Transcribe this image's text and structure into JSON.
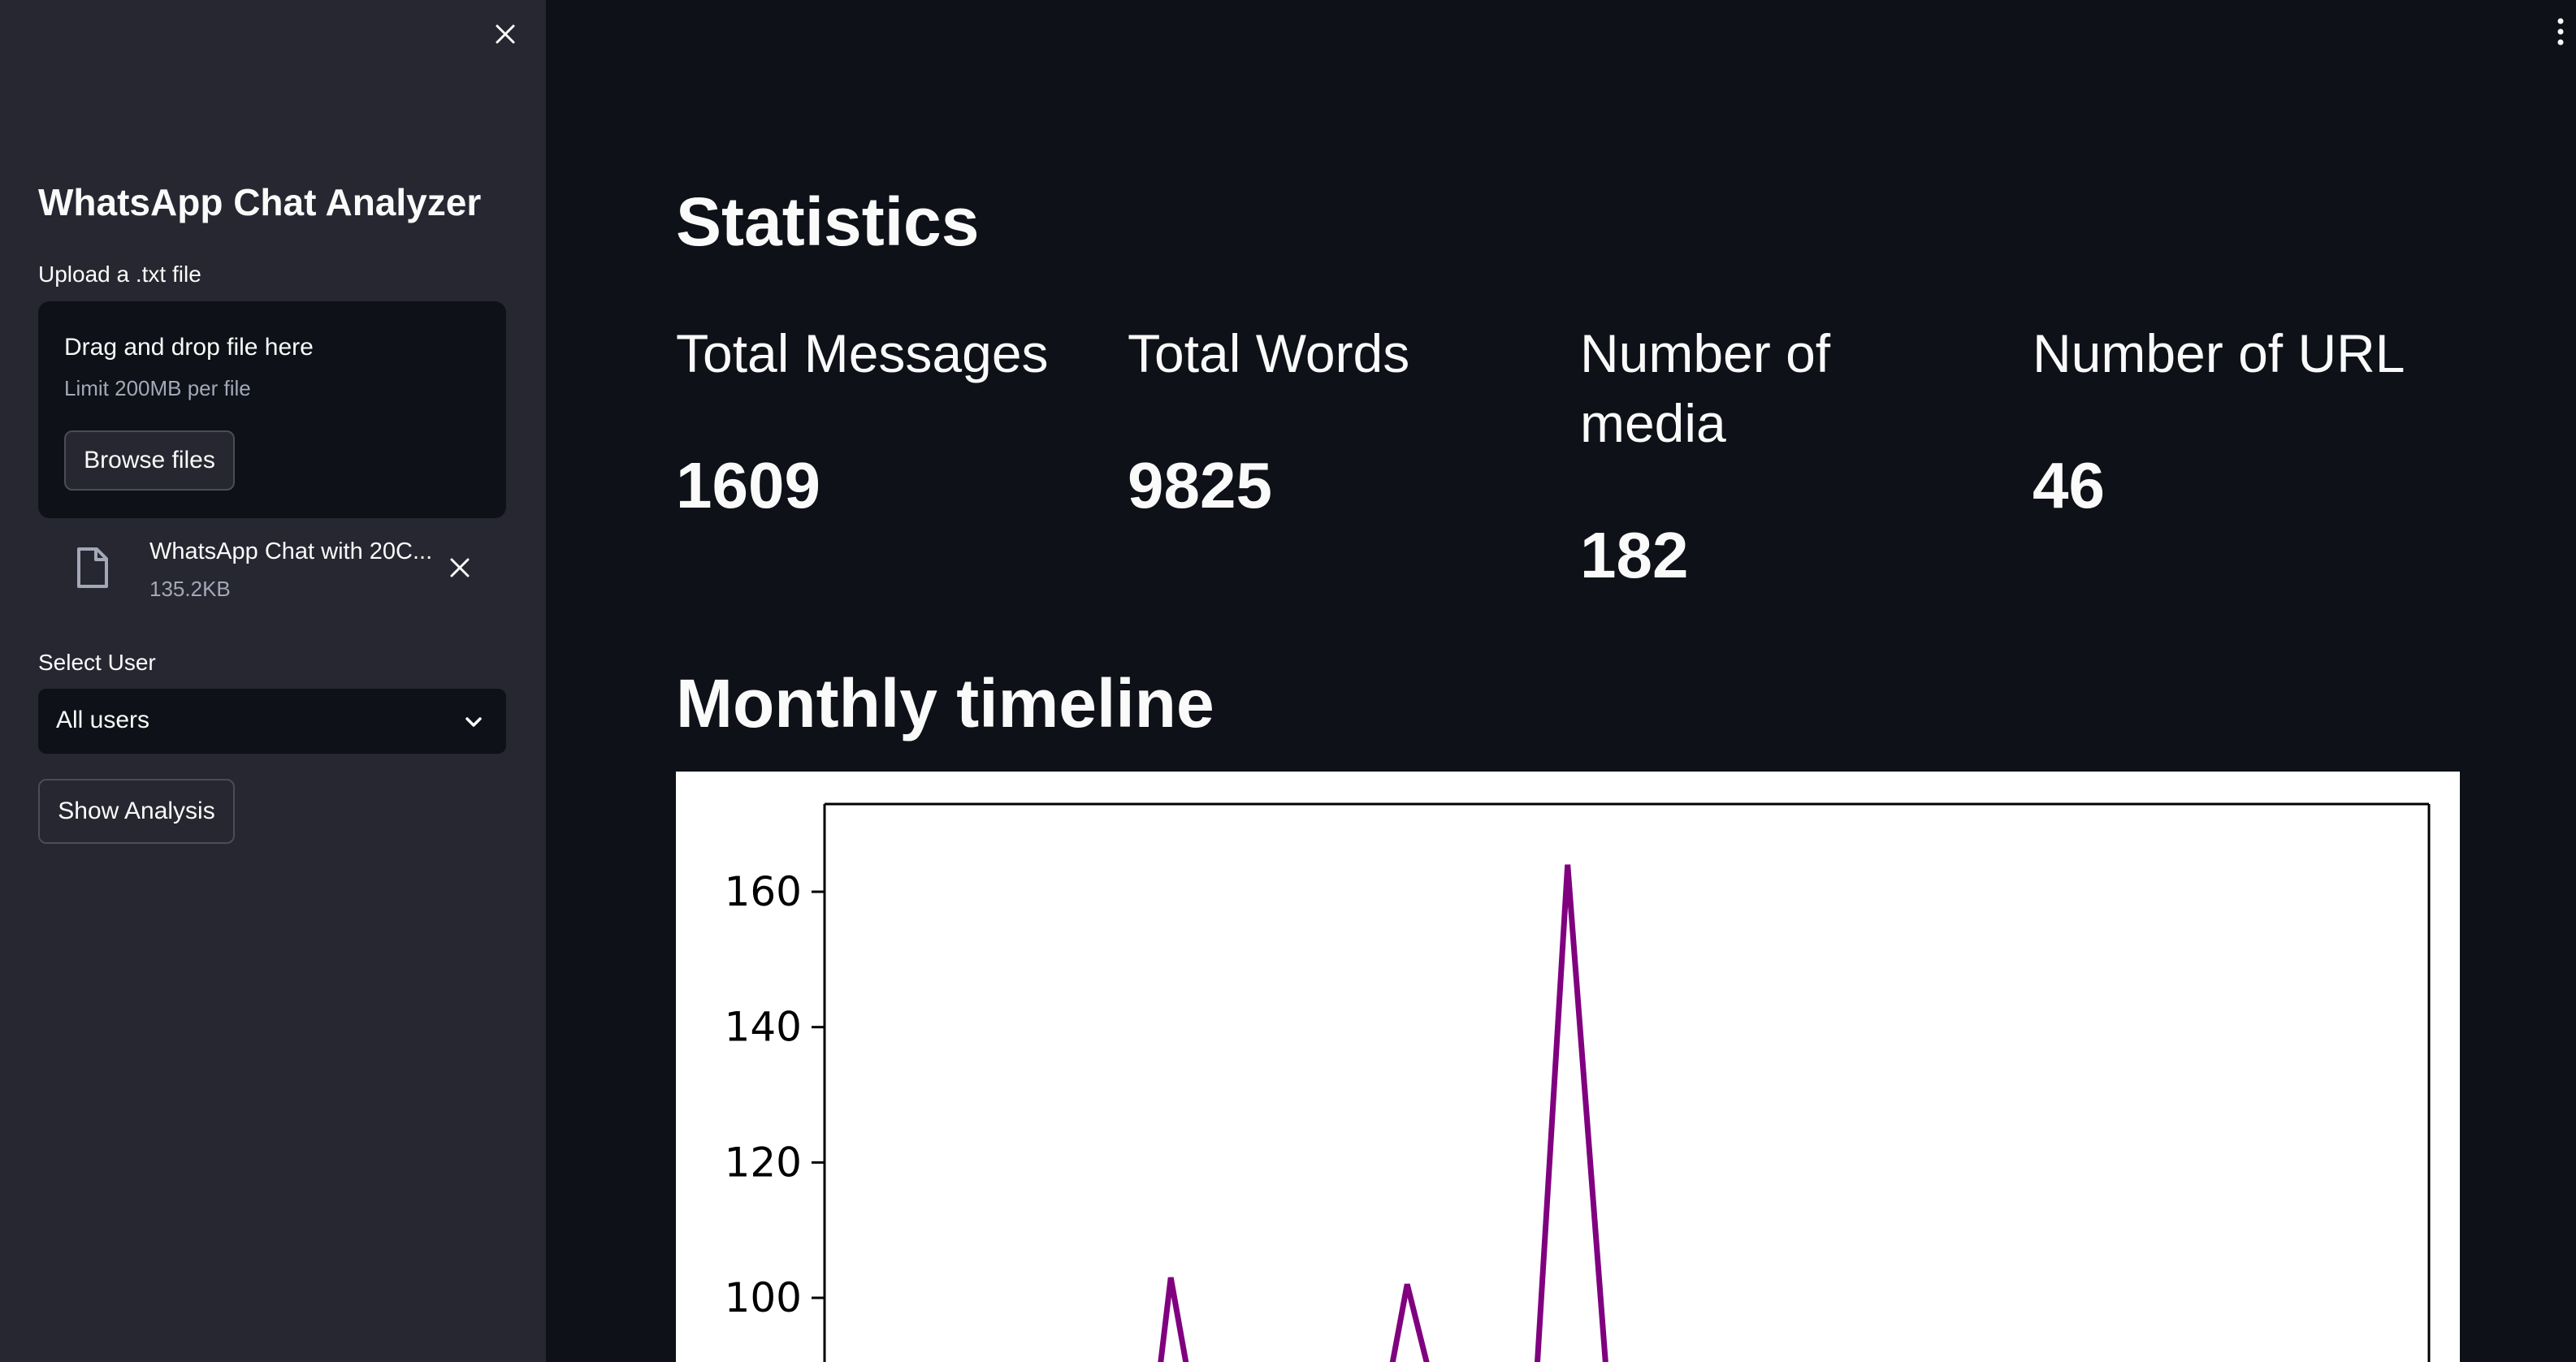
{
  "sidebar": {
    "title": "WhatsApp Chat Analyzer",
    "upload_label": "Upload a .txt file",
    "dropzone": {
      "title": "Drag and drop file here",
      "limit": "Limit 200MB per file",
      "browse_label": "Browse files"
    },
    "file": {
      "name": "WhatsApp Chat with 20C...",
      "size": "135.2KB"
    },
    "select_label": "Select User",
    "select_value": "All users",
    "show_analysis_label": "Show Analysis"
  },
  "main": {
    "statistics_heading": "Statistics",
    "metrics": [
      {
        "label": "Total Messages",
        "value": "1609"
      },
      {
        "label": "Total Words",
        "value": "9825"
      },
      {
        "label": "Number of media",
        "value": "182"
      },
      {
        "label": "Number of URL",
        "value": "46"
      }
    ],
    "timeline_heading": "Monthly timeline"
  },
  "chart_data": {
    "type": "line",
    "title": "",
    "xlabel": "",
    "ylabel": "",
    "ylim": [
      82,
      172
    ],
    "yticks": [
      100,
      120,
      140,
      160
    ],
    "xlim": [
      0,
      19
    ],
    "grid": false,
    "color": "#800080",
    "visible_points": [
      {
        "x": 3.9,
        "y": 82
      },
      {
        "x": 4.1,
        "y": 103
      },
      {
        "x": 4.4,
        "y": 82
      },
      {
        "x": 6.6,
        "y": 82
      },
      {
        "x": 6.9,
        "y": 102
      },
      {
        "x": 7.3,
        "y": 82
      },
      {
        "x": 8.4,
        "y": 82
      },
      {
        "x": 8.8,
        "y": 164
      },
      {
        "x": 9.3,
        "y": 82
      }
    ]
  }
}
